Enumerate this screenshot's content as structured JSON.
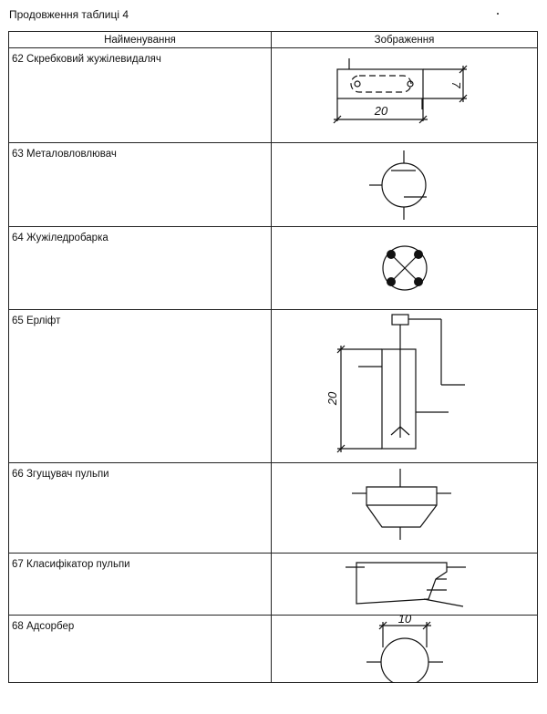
{
  "caption": "Продовження таблиці 4",
  "headers": {
    "name": "Найменування",
    "image": "Зображення"
  },
  "rows": [
    {
      "name": "62 Скребковий жужілевидаляч",
      "symbol": "scraper-slag-remover",
      "dims": {
        "width": "20",
        "height": "7"
      }
    },
    {
      "name": "63 Металовловлювач",
      "symbol": "metal-catcher"
    },
    {
      "name": "64 Жужіледробарка",
      "symbol": "slag-crusher"
    },
    {
      "name": "65 Ерліфт",
      "symbol": "airlift",
      "dims": {
        "height": "20"
      }
    },
    {
      "name": "66 Згущувач пульпи",
      "symbol": "pulp-thickener"
    },
    {
      "name": "67 Класифікатор пульпи",
      "symbol": "pulp-classifier"
    },
    {
      "name": "68 Адсорбер",
      "symbol": "adsorber",
      "dims": {
        "width": "10"
      }
    }
  ]
}
